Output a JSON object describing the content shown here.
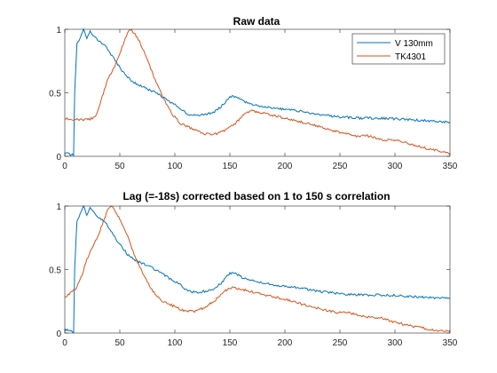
{
  "chart_data": [
    {
      "type": "line",
      "title": "Raw data",
      "xlabel": "",
      "ylabel": "",
      "xlim": [
        0,
        350
      ],
      "ylim": [
        0,
        1
      ],
      "xticks": [
        "0",
        "50",
        "100",
        "150",
        "200",
        "250",
        "300",
        "350"
      ],
      "yticks": [
        "0",
        "0.5",
        "1"
      ],
      "grid": false,
      "legend": "top-right",
      "series": [
        {
          "name": "V 130mm",
          "color": "#0072BD",
          "points": [
            [
              0,
              0.03
            ],
            [
              6,
              0.01
            ],
            [
              8,
              0.01
            ],
            [
              9,
              0.5
            ],
            [
              11,
              0.88
            ],
            [
              15,
              0.95
            ],
            [
              17,
              1.0
            ],
            [
              20,
              0.93
            ],
            [
              23,
              0.99
            ],
            [
              27,
              0.94
            ],
            [
              32,
              0.9
            ],
            [
              37,
              0.87
            ],
            [
              42,
              0.8
            ],
            [
              50,
              0.7
            ],
            [
              57,
              0.62
            ],
            [
              65,
              0.57
            ],
            [
              75,
              0.53
            ],
            [
              85,
              0.49
            ],
            [
              95,
              0.43
            ],
            [
              105,
              0.38
            ],
            [
              112,
              0.33
            ],
            [
              120,
              0.32
            ],
            [
              128,
              0.33
            ],
            [
              136,
              0.35
            ],
            [
              143,
              0.4
            ],
            [
              150,
              0.47
            ],
            [
              155,
              0.47
            ],
            [
              163,
              0.43
            ],
            [
              175,
              0.4
            ],
            [
              190,
              0.38
            ],
            [
              210,
              0.36
            ],
            [
              230,
              0.33
            ],
            [
              250,
              0.31
            ],
            [
              270,
              0.3
            ],
            [
              290,
              0.3
            ],
            [
              310,
              0.29
            ],
            [
              330,
              0.28
            ],
            [
              350,
              0.27
            ]
          ]
        },
        {
          "name": "TK4301",
          "color": "#D95319",
          "points": [
            [
              0,
              0.3
            ],
            [
              10,
              0.29
            ],
            [
              22,
              0.29
            ],
            [
              28,
              0.31
            ],
            [
              33,
              0.44
            ],
            [
              38,
              0.58
            ],
            [
              43,
              0.67
            ],
            [
              48,
              0.76
            ],
            [
              53,
              0.88
            ],
            [
              57,
              0.97
            ],
            [
              60,
              1.0
            ],
            [
              63,
              0.97
            ],
            [
              68,
              0.9
            ],
            [
              75,
              0.76
            ],
            [
              82,
              0.6
            ],
            [
              90,
              0.45
            ],
            [
              98,
              0.33
            ],
            [
              105,
              0.26
            ],
            [
              115,
              0.22
            ],
            [
              125,
              0.18
            ],
            [
              135,
              0.17
            ],
            [
              145,
              0.2
            ],
            [
              155,
              0.26
            ],
            [
              163,
              0.33
            ],
            [
              170,
              0.36
            ],
            [
              180,
              0.34
            ],
            [
              195,
              0.31
            ],
            [
              210,
              0.28
            ],
            [
              225,
              0.25
            ],
            [
              240,
              0.21
            ],
            [
              255,
              0.18
            ],
            [
              265,
              0.16
            ],
            [
              275,
              0.16
            ],
            [
              290,
              0.13
            ],
            [
              305,
              0.12
            ],
            [
              320,
              0.08
            ],
            [
              335,
              0.05
            ],
            [
              350,
              0.02
            ]
          ]
        }
      ]
    },
    {
      "type": "line",
      "title": "Lag (=-18s) corrected based on 1 to 150 s correlation",
      "xlabel": "",
      "ylabel": "",
      "xlim": [
        0,
        350
      ],
      "ylim": [
        0,
        1
      ],
      "xticks": [
        "0",
        "50",
        "100",
        "150",
        "200",
        "250",
        "300",
        "350"
      ],
      "yticks": [
        "0",
        "0.5",
        "1"
      ],
      "grid": false,
      "legend": "none",
      "series": [
        {
          "color": "#0072BD",
          "points": [
            [
              0,
              0.03
            ],
            [
              6,
              0.01
            ],
            [
              8,
              0.01
            ],
            [
              9,
              0.5
            ],
            [
              11,
              0.88
            ],
            [
              15,
              0.95
            ],
            [
              17,
              1.0
            ],
            [
              20,
              0.93
            ],
            [
              23,
              0.99
            ],
            [
              27,
              0.94
            ],
            [
              32,
              0.9
            ],
            [
              37,
              0.87
            ],
            [
              42,
              0.8
            ],
            [
              50,
              0.7
            ],
            [
              57,
              0.62
            ],
            [
              65,
              0.57
            ],
            [
              75,
              0.53
            ],
            [
              85,
              0.49
            ],
            [
              95,
              0.43
            ],
            [
              105,
              0.38
            ],
            [
              112,
              0.33
            ],
            [
              120,
              0.32
            ],
            [
              128,
              0.33
            ],
            [
              136,
              0.35
            ],
            [
              143,
              0.4
            ],
            [
              150,
              0.47
            ],
            [
              155,
              0.47
            ],
            [
              163,
              0.43
            ],
            [
              175,
              0.4
            ],
            [
              190,
              0.38
            ],
            [
              210,
              0.36
            ],
            [
              230,
              0.33
            ],
            [
              250,
              0.31
            ],
            [
              270,
              0.3
            ],
            [
              290,
              0.3
            ],
            [
              310,
              0.29
            ],
            [
              330,
              0.28
            ],
            [
              350,
              0.27
            ]
          ]
        },
        {
          "color": "#D95319",
          "points": [
            [
              0,
              0.28
            ],
            [
              4,
              0.31
            ],
            [
              10,
              0.35
            ],
            [
              15,
              0.44
            ],
            [
              20,
              0.58
            ],
            [
              25,
              0.67
            ],
            [
              30,
              0.76
            ],
            [
              35,
              0.88
            ],
            [
              39,
              0.97
            ],
            [
              42,
              1.0
            ],
            [
              45,
              0.97
            ],
            [
              50,
              0.9
            ],
            [
              57,
              0.76
            ],
            [
              64,
              0.6
            ],
            [
              72,
              0.45
            ],
            [
              80,
              0.33
            ],
            [
              87,
              0.26
            ],
            [
              97,
              0.22
            ],
            [
              107,
              0.18
            ],
            [
              117,
              0.17
            ],
            [
              127,
              0.2
            ],
            [
              137,
              0.26
            ],
            [
              145,
              0.33
            ],
            [
              152,
              0.36
            ],
            [
              162,
              0.34
            ],
            [
              177,
              0.31
            ],
            [
              192,
              0.28
            ],
            [
              207,
              0.25
            ],
            [
              222,
              0.21
            ],
            [
              237,
              0.18
            ],
            [
              247,
              0.16
            ],
            [
              257,
              0.16
            ],
            [
              272,
              0.13
            ],
            [
              287,
              0.12
            ],
            [
              302,
              0.08
            ],
            [
              317,
              0.05
            ],
            [
              332,
              0.03
            ],
            [
              350,
              0.01
            ]
          ]
        }
      ]
    }
  ]
}
